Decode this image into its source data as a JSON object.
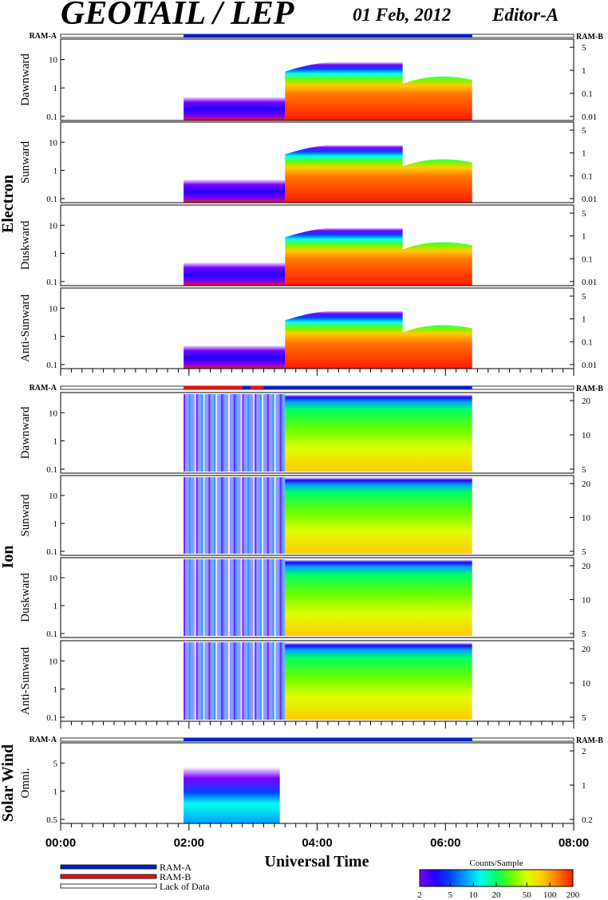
{
  "header": {
    "title": "GEOTAIL / LEP",
    "date": "01 Feb, 2012",
    "editor": "Editor-A"
  },
  "colors": {
    "ram_a": "#0022cc",
    "ram_b": "#ee1111",
    "lack_of_data": "#ffffff",
    "colormap": [
      "#7a00ff",
      "#2200ff",
      "#0044ff",
      "#00a0ff",
      "#00ffee",
      "#00ff66",
      "#66ff00",
      "#ddff00",
      "#ffcc00",
      "#ff7700",
      "#ff1a00"
    ]
  },
  "chart_data": [
    {
      "type": "heatmap",
      "group": "Electron",
      "channel": "Dawnward",
      "left_ticks": [
        "10",
        "1",
        "0.1"
      ],
      "right_ticks": [
        "5",
        "1",
        "0.1",
        "0.01"
      ],
      "ram_label_left": "RAM-A",
      "ram_label_right": "RAM-B",
      "ram_segments": [
        {
          "mode": "RAM-A",
          "start": "01:55",
          "end": "06:25"
        }
      ]
    },
    {
      "type": "heatmap",
      "group": "Electron",
      "channel": "Sunward",
      "left_ticks": [
        "10",
        "1",
        "0.1"
      ],
      "right_ticks": [
        "5",
        "1",
        "0.1",
        "0.01"
      ]
    },
    {
      "type": "heatmap",
      "group": "Electron",
      "channel": "Duskward",
      "left_ticks": [
        "10",
        "1",
        "0.1"
      ],
      "right_ticks": [
        "5",
        "1",
        "0.1",
        "0.01"
      ]
    },
    {
      "type": "heatmap",
      "group": "Electron",
      "channel": "Anti-Sunward",
      "left_ticks": [
        "10",
        "1",
        "0.1"
      ],
      "right_ticks": [
        "5",
        "1",
        "0.1",
        "0.01"
      ]
    },
    {
      "type": "heatmap",
      "group": "Ion",
      "channel": "Dawnward",
      "left_ticks": [
        "10",
        "1",
        "0.1"
      ],
      "right_ticks": [
        "20",
        "10",
        "5"
      ],
      "ram_label_left": "RAM-A",
      "ram_label_right": "RAM-B",
      "ram_segments": [
        {
          "mode": "RAM-B",
          "start": "01:55",
          "end": "02:50"
        },
        {
          "mode": "RAM-A",
          "start": "02:50",
          "end": "02:58"
        },
        {
          "mode": "RAM-B",
          "start": "02:58",
          "end": "03:10"
        },
        {
          "mode": "RAM-A",
          "start": "03:10",
          "end": "06:25"
        }
      ]
    },
    {
      "type": "heatmap",
      "group": "Ion",
      "channel": "Sunward",
      "left_ticks": [
        "10",
        "1",
        "0.1"
      ],
      "right_ticks": [
        "20",
        "10",
        "5"
      ]
    },
    {
      "type": "heatmap",
      "group": "Ion",
      "channel": "Duskward",
      "left_ticks": [
        "10",
        "1",
        "0.1"
      ],
      "right_ticks": [
        "20",
        "10",
        "5"
      ]
    },
    {
      "type": "heatmap",
      "group": "Ion",
      "channel": "Anti-Sunward",
      "left_ticks": [
        "10",
        "1",
        "0.1"
      ],
      "right_ticks": [
        "20",
        "10",
        "5"
      ]
    },
    {
      "type": "heatmap",
      "group": "Solar Wind",
      "channel": "Omni.",
      "left_ticks": [
        "5",
        "1",
        "0.5"
      ],
      "right_ticks": [
        "2",
        "1",
        "0.2"
      ],
      "ram_label_left": "RAM-A",
      "ram_label_right": "RAM-B",
      "ram_segments": [
        {
          "mode": "RAM-A",
          "start": "01:55",
          "end": "06:25"
        }
      ]
    }
  ],
  "time_axis": {
    "xlabel": "Universal Time",
    "tick_labels": [
      "00:00",
      "02:00",
      "04:00",
      "06:00",
      "08:00"
    ],
    "range": [
      "00:00",
      "08:00"
    ],
    "data_start": "01:55",
    "data_end": "06:25"
  },
  "group_labels": [
    "Electron",
    "Ion",
    "Solar Wind"
  ],
  "legend": {
    "items": [
      {
        "label": "RAM-A",
        "kind": "ram_a"
      },
      {
        "label": "RAM-B",
        "kind": "ram_b"
      },
      {
        "label": "Lack of Data",
        "kind": "lack_of_data"
      }
    ]
  },
  "colorbar": {
    "title": "Counts/Sample",
    "tick_labels": [
      "2",
      "5",
      "10",
      "20",
      "50",
      "100",
      "200"
    ],
    "scale": "log",
    "range": [
      2,
      200
    ]
  }
}
